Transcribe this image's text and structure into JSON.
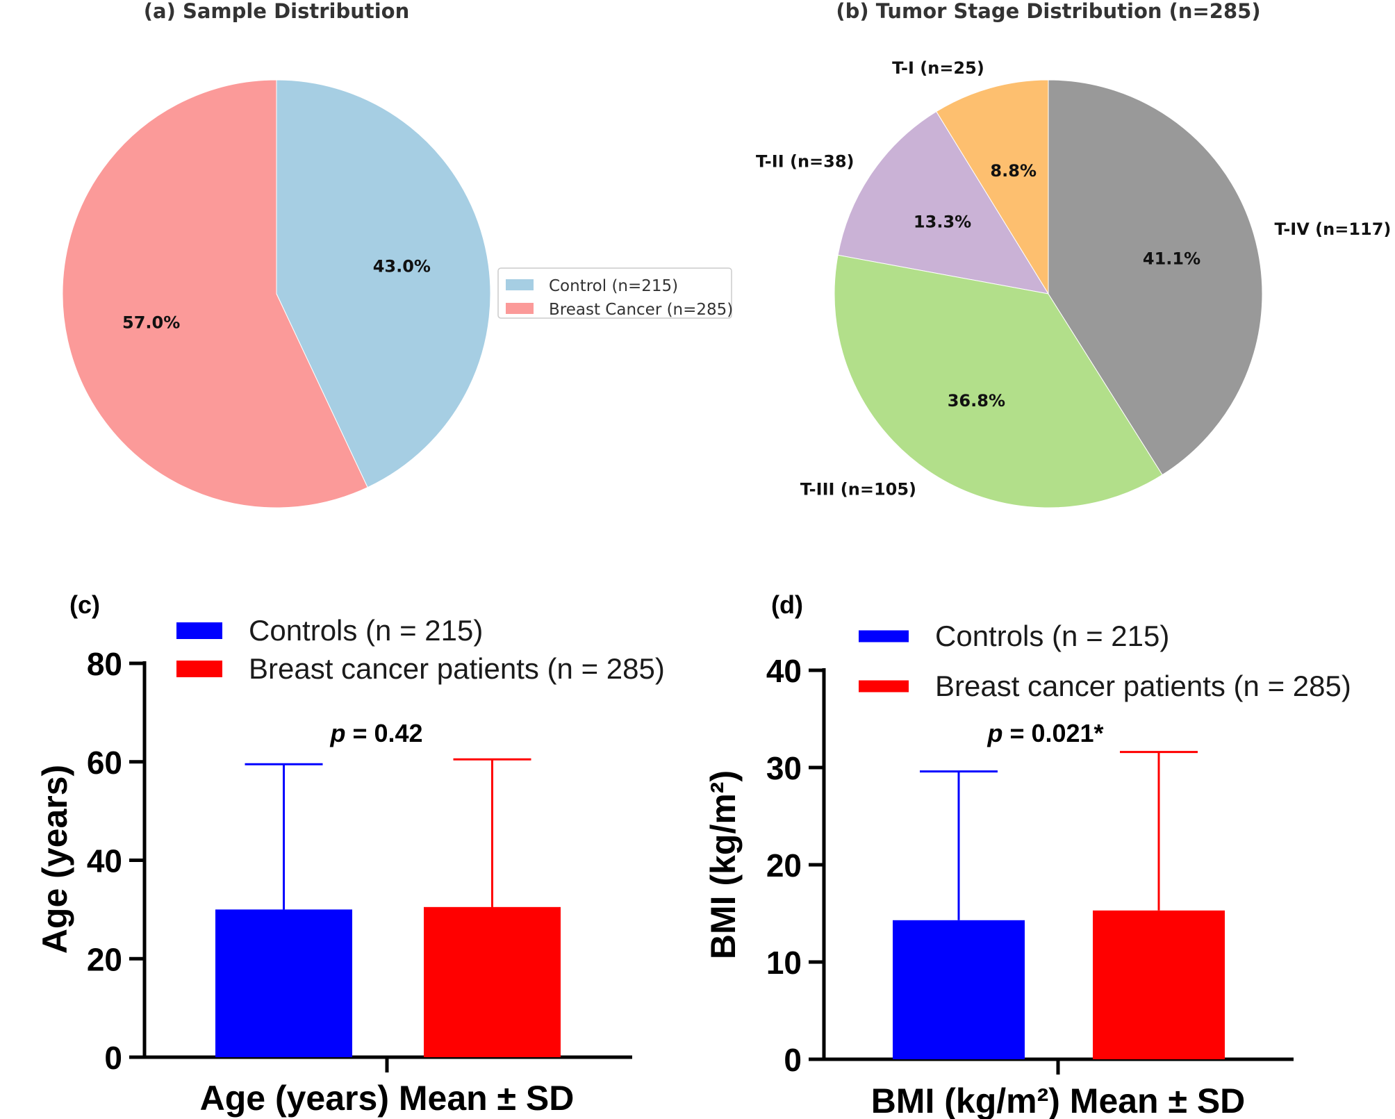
{
  "chart_data": [
    {
      "type": "pie",
      "panel": "(a)",
      "title": "(a) Sample Distribution",
      "slices": [
        {
          "label": "Control (n=215)",
          "value": 215,
          "pct_label": "43.0%",
          "color": "#a6cee3"
        },
        {
          "label": "Breast Cancer (n=285)",
          "value": 285,
          "pct_label": "57.0%",
          "color": "#fb9a99"
        }
      ],
      "legend": [
        "Control (n=215)",
        "Breast Cancer (n=285)"
      ],
      "legend_position": "right"
    },
    {
      "type": "pie",
      "panel": "(b)",
      "title": "(b) Tumor Stage Distribution (n=285)",
      "slices": [
        {
          "label": "T-I (n=25)",
          "value": 25,
          "pct_label": "8.8%",
          "color": "#fdbf6f"
        },
        {
          "label": "T-II (n=38)",
          "value": 38,
          "pct_label": "13.3%",
          "color": "#cab2d6"
        },
        {
          "label": "T-III (n=105)",
          "value": 105,
          "pct_label": "36.8%",
          "color": "#b2df8a"
        },
        {
          "label": "T-IV (n=117)",
          "value": 117,
          "pct_label": "41.1%",
          "color": "#999999"
        }
      ]
    },
    {
      "type": "bar",
      "panel": "(c)",
      "categories": [
        "Controls (n = 215)",
        "Breast cancer patients (n = 285)"
      ],
      "series": [
        {
          "name": "Controls (n = 215)",
          "mean": 30,
          "sd": 29.5,
          "color": "#0000ff"
        },
        {
          "name": "Breast cancer patients (n = 285)",
          "mean": 30.5,
          "sd": 30,
          "color": "#ff0000"
        }
      ],
      "ylabel": "Age (years)",
      "xlabel": "Age (years) Mean ± SD",
      "ylim": [
        0,
        80
      ],
      "yticks": [
        "0",
        "20",
        "40",
        "60",
        "80"
      ],
      "annotation_italic": "p",
      "annotation": "= 0.42"
    },
    {
      "type": "bar",
      "panel": "(d)",
      "categories": [
        "Controls (n = 215)",
        "Breast cancer patients (n = 285)"
      ],
      "series": [
        {
          "name": "Controls (n = 215)",
          "mean": 14.3,
          "sd": 15.3,
          "color": "#0000ff"
        },
        {
          "name": "Breast cancer patients (n = 285)",
          "mean": 15.3,
          "sd": 16.3,
          "color": "#ff0000"
        }
      ],
      "ylabel": "BMI (kg/m²)",
      "xlabel": "BMI (kg/m²) Mean ± SD",
      "ylim": [
        0,
        40
      ],
      "yticks": [
        "0",
        "10",
        "20",
        "30",
        "40"
      ],
      "annotation_italic": "p",
      "annotation": "= 0.021*"
    }
  ]
}
